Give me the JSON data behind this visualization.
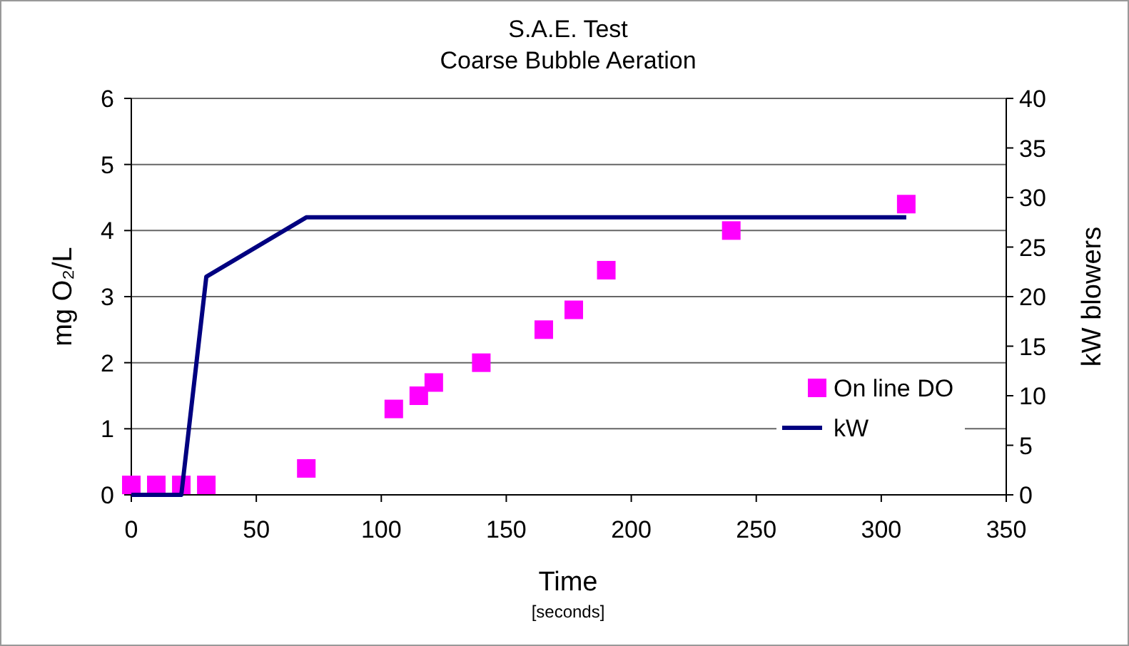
{
  "chart_data": {
    "type": "scatter",
    "title": "S.A.E. Test",
    "subtitle": "Coarse Bubble Aeration",
    "xlabel": "Time",
    "ylabel": "mg O₂/L",
    "y2label": "kW blowers",
    "annotations": [
      "[seconds]"
    ],
    "xlim": [
      0,
      350
    ],
    "xticks": [
      0,
      50,
      100,
      150,
      200,
      250,
      300,
      350
    ],
    "ylim": [
      0,
      6
    ],
    "yticks": [
      0,
      1,
      2,
      3,
      4,
      5,
      6
    ],
    "y2lim": [
      0,
      40
    ],
    "y2ticks": [
      0,
      5,
      10,
      15,
      20,
      25,
      30,
      35,
      40
    ],
    "grid": "y",
    "legend": "right",
    "series": [
      {
        "name": "On line DO",
        "marker": "square",
        "color": "#ff00ff",
        "x": [
          0,
          10,
          20,
          30,
          70,
          105,
          115,
          121,
          140,
          165,
          177,
          190,
          240,
          310
        ],
        "values": [
          0.15,
          0.15,
          0.15,
          0.15,
          0.4,
          1.3,
          1.5,
          1.7,
          2.0,
          2.5,
          2.8,
          3.4,
          4.0,
          4.4
        ]
      },
      {
        "name": "kW",
        "type": "line",
        "axis": "y2",
        "marker": "none",
        "line_style": "solid",
        "color": "#000080",
        "x": [
          0,
          20,
          30,
          70,
          310
        ],
        "values": [
          0,
          0,
          22,
          28,
          28
        ]
      }
    ]
  }
}
